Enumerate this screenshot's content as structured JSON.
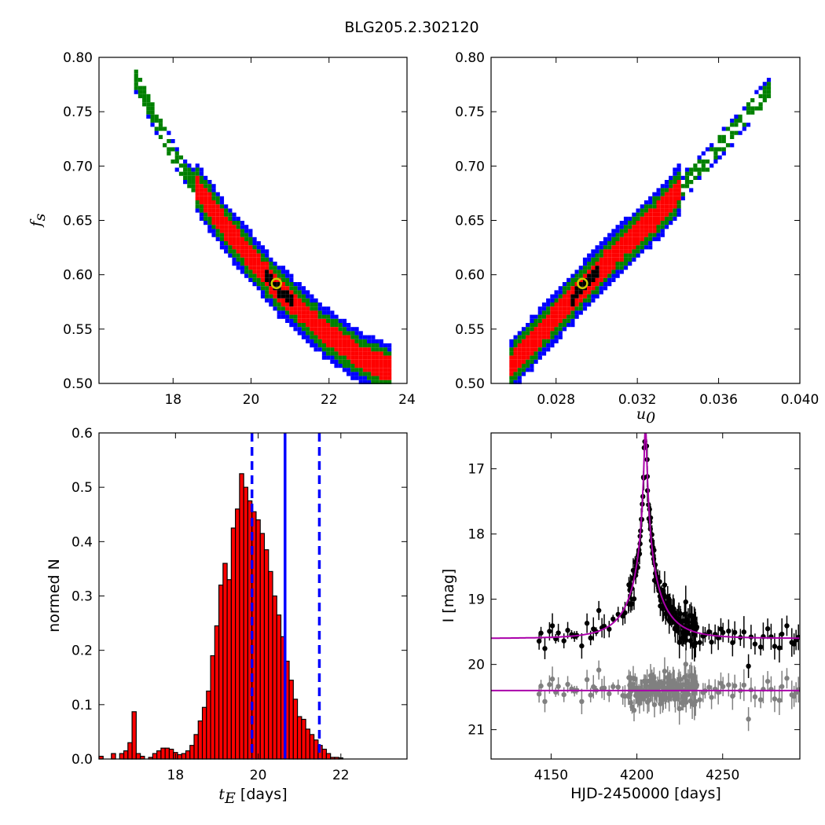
{
  "title": "BLG205.2.302120",
  "chart_data": [
    {
      "type": "heatmap",
      "panel": "top-left",
      "xlabel": "",
      "ylabel": "f",
      "ylabel_sub": "s",
      "xlim": [
        16.1,
        24.0
      ],
      "ylim": [
        0.5,
        0.8
      ],
      "xticks": [
        "18",
        "20",
        "22",
        "24"
      ],
      "yticks": [
        "0.50",
        "0.55",
        "0.60",
        "0.65",
        "0.70",
        "0.75",
        "0.80"
      ],
      "levels": [
        "black",
        "red",
        "green",
        "blue"
      ],
      "colors": {
        "black": "#000000",
        "red": "#ff0000",
        "green": "#008000",
        "blue": "#0000ff"
      },
      "ridge": [
        [
          17.0,
          0.78
        ],
        [
          18.0,
          0.71
        ],
        [
          19.3,
          0.645
        ],
        [
          20.6,
          0.59
        ],
        [
          21.8,
          0.55
        ],
        [
          22.7,
          0.527
        ],
        [
          23.5,
          0.515
        ]
      ],
      "best_fit": {
        "x": 20.65,
        "y": 0.592
      }
    },
    {
      "type": "heatmap",
      "panel": "top-right",
      "xlabel": "u",
      "xlabel_sub": "0",
      "ylabel": "",
      "xlim": [
        0.0248,
        0.04
      ],
      "ylim": [
        0.5,
        0.8
      ],
      "xticks": [
        "0.028",
        "0.032",
        "0.036",
        "0.040"
      ],
      "yticks": [
        "0.50",
        "0.55",
        "0.60",
        "0.65",
        "0.70",
        "0.75",
        "0.80"
      ],
      "ridge": [
        [
          0.0255,
          0.515
        ],
        [
          0.0275,
          0.555
        ],
        [
          0.0293,
          0.592
        ],
        [
          0.0312,
          0.628
        ],
        [
          0.0328,
          0.655
        ],
        [
          0.0345,
          0.69
        ],
        [
          0.0362,
          0.725
        ],
        [
          0.0385,
          0.775
        ]
      ],
      "best_fit": {
        "x": 0.0293,
        "y": 0.592
      }
    },
    {
      "type": "bar",
      "panel": "bottom-left",
      "xlabel": "t",
      "xlabel_sub": "E",
      "xlabel_suffix": " [days]",
      "ylabel": "normed N",
      "xlim": [
        16.15,
        23.6
      ],
      "ylim": [
        0.0,
        0.6
      ],
      "xticks": [
        "18",
        "20",
        "22"
      ],
      "yticks": [
        "0.0",
        "0.1",
        "0.2",
        "0.3",
        "0.4",
        "0.5",
        "0.6"
      ],
      "bin_start": 16.15,
      "bin_width": 0.1,
      "values": [
        0.005,
        0.0,
        0.0,
        0.01,
        0.0,
        0.01,
        0.015,
        0.03,
        0.087,
        0.01,
        0.005,
        0.0,
        0.003,
        0.01,
        0.015,
        0.02,
        0.02,
        0.018,
        0.012,
        0.008,
        0.01,
        0.015,
        0.025,
        0.045,
        0.07,
        0.095,
        0.125,
        0.19,
        0.245,
        0.32,
        0.36,
        0.33,
        0.425,
        0.46,
        0.525,
        0.5,
        0.475,
        0.455,
        0.44,
        0.415,
        0.385,
        0.345,
        0.3,
        0.265,
        0.225,
        0.18,
        0.145,
        0.11,
        0.078,
        0.073,
        0.055,
        0.045,
        0.035,
        0.025,
        0.018,
        0.01,
        0.003,
        0.003,
        0.002
      ],
      "bar_color": "#ff0000",
      "median": 20.65,
      "lower": 19.85,
      "upper": 21.48,
      "line_color": "#0000ff"
    },
    {
      "type": "scatter",
      "panel": "bottom-right",
      "xlabel": "HJD-2450000 [days]",
      "ylabel": "I [mag]",
      "xlim": [
        4115,
        4295
      ],
      "ylim": [
        21.45,
        16.45
      ],
      "xticks": [
        "4150",
        "4200",
        "4250"
      ],
      "yticks": [
        "17",
        "18",
        "19",
        "20",
        "21"
      ],
      "model": {
        "t0": 4205,
        "tE": 20.65,
        "u0": 0.0293,
        "baseline": 19.6,
        "fs": 0.592,
        "color": "#aa00aa"
      },
      "residual_offset": 20.4,
      "observed_color": "#000000",
      "residual_color": "#808080"
    }
  ]
}
